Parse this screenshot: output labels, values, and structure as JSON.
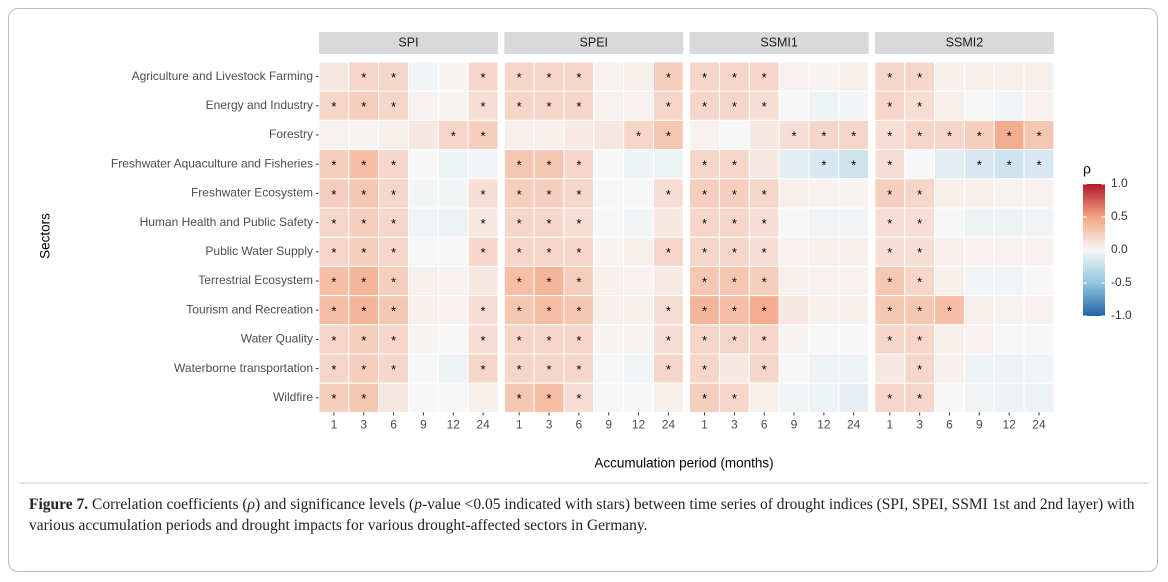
{
  "chart_data": {
    "type": "heatmap",
    "y_label": "Sectors",
    "x_label": "Accumulation period (months)",
    "categories": [
      1,
      3,
      6,
      9,
      12,
      24
    ],
    "sectors": [
      "Agriculture and Livestock Farming",
      "Energy and Industry",
      "Forestry",
      "Freshwater Aquaculture and Fisheries",
      "Freshwater Ecosystem",
      "Human Health and Public Safety",
      "Public Water Supply",
      "Terrestrial Ecosystem",
      "Tourism and Recreation",
      "Water Quality",
      "Waterborne transportation",
      "Wildfire"
    ],
    "star_label": "*",
    "panels": [
      {
        "name": "SPI",
        "values": [
          [
            0.1,
            0.2,
            0.2,
            -0.03,
            0.02,
            0.2
          ],
          [
            0.2,
            0.25,
            0.2,
            0.03,
            0.02,
            0.15
          ],
          [
            0.03,
            0.02,
            0.05,
            0.1,
            0.2,
            0.25
          ],
          [
            0.25,
            0.35,
            0.2,
            0.0,
            -0.05,
            -0.03
          ],
          [
            0.25,
            0.3,
            0.2,
            -0.02,
            -0.02,
            0.15
          ],
          [
            0.2,
            0.25,
            0.2,
            -0.03,
            -0.05,
            0.1
          ],
          [
            0.2,
            0.25,
            0.2,
            0.0,
            0.0,
            0.2
          ],
          [
            0.35,
            0.4,
            0.25,
            0.05,
            0.03,
            0.1
          ],
          [
            0.35,
            0.4,
            0.3,
            0.05,
            0.03,
            0.15
          ],
          [
            0.2,
            0.25,
            0.2,
            0.02,
            0.0,
            0.15
          ],
          [
            0.2,
            0.25,
            0.2,
            0.0,
            -0.05,
            0.2
          ],
          [
            0.25,
            0.3,
            0.1,
            0.0,
            0.0,
            0.05
          ]
        ],
        "significant": [
          [
            0,
            1,
            1,
            0,
            0,
            1
          ],
          [
            1,
            1,
            1,
            0,
            0,
            1
          ],
          [
            0,
            0,
            0,
            0,
            1,
            1
          ],
          [
            1,
            1,
            1,
            0,
            0,
            0
          ],
          [
            1,
            1,
            1,
            0,
            0,
            1
          ],
          [
            1,
            1,
            1,
            0,
            0,
            1
          ],
          [
            1,
            1,
            1,
            0,
            0,
            1
          ],
          [
            1,
            1,
            1,
            0,
            0,
            0
          ],
          [
            1,
            1,
            1,
            0,
            0,
            1
          ],
          [
            1,
            1,
            1,
            0,
            0,
            1
          ],
          [
            1,
            1,
            1,
            0,
            0,
            1
          ],
          [
            1,
            1,
            0,
            0,
            0,
            0
          ]
        ]
      },
      {
        "name": "SPEI",
        "values": [
          [
            0.2,
            0.2,
            0.2,
            0.03,
            0.05,
            0.25
          ],
          [
            0.2,
            0.2,
            0.2,
            0.03,
            0.03,
            0.2
          ],
          [
            0.05,
            0.05,
            0.08,
            0.1,
            0.2,
            0.3
          ],
          [
            0.3,
            0.3,
            0.2,
            0.0,
            -0.05,
            -0.05
          ],
          [
            0.25,
            0.25,
            0.2,
            0.0,
            0.0,
            0.15
          ],
          [
            0.2,
            0.2,
            0.15,
            0.0,
            -0.03,
            0.1
          ],
          [
            0.2,
            0.2,
            0.2,
            0.02,
            0.05,
            0.2
          ],
          [
            0.35,
            0.4,
            0.25,
            0.05,
            0.03,
            0.08
          ],
          [
            0.3,
            0.35,
            0.3,
            0.05,
            0.05,
            0.15
          ],
          [
            0.2,
            0.2,
            0.2,
            0.02,
            0.02,
            0.15
          ],
          [
            0.2,
            0.2,
            0.2,
            0.0,
            -0.03,
            0.2
          ],
          [
            0.3,
            0.35,
            0.15,
            0.0,
            0.0,
            0.05
          ]
        ],
        "significant": [
          [
            1,
            1,
            1,
            0,
            0,
            1
          ],
          [
            1,
            1,
            1,
            0,
            0,
            1
          ],
          [
            0,
            0,
            0,
            0,
            1,
            1
          ],
          [
            1,
            1,
            1,
            0,
            0,
            0
          ],
          [
            1,
            1,
            1,
            0,
            0,
            1
          ],
          [
            1,
            1,
            1,
            0,
            0,
            0
          ],
          [
            1,
            1,
            1,
            0,
            0,
            1
          ],
          [
            1,
            1,
            1,
            0,
            0,
            0
          ],
          [
            1,
            1,
            1,
            0,
            0,
            1
          ],
          [
            1,
            1,
            1,
            0,
            0,
            1
          ],
          [
            1,
            1,
            1,
            0,
            0,
            1
          ],
          [
            1,
            1,
            1,
            0,
            0,
            0
          ]
        ]
      },
      {
        "name": "SSMI1",
        "values": [
          [
            0.2,
            0.2,
            0.2,
            0.03,
            0.02,
            0.05
          ],
          [
            0.2,
            0.2,
            0.15,
            0.0,
            -0.05,
            -0.02
          ],
          [
            0.03,
            0.0,
            0.1,
            0.15,
            0.2,
            0.2
          ],
          [
            0.2,
            0.2,
            0.1,
            -0.1,
            -0.15,
            -0.2
          ],
          [
            0.25,
            0.25,
            0.2,
            0.05,
            0.03,
            0.02
          ],
          [
            0.2,
            0.2,
            0.15,
            0.0,
            -0.03,
            -0.03
          ],
          [
            0.2,
            0.2,
            0.15,
            0.03,
            0.05,
            0.05
          ],
          [
            0.3,
            0.3,
            0.25,
            0.05,
            0.03,
            0.03
          ],
          [
            0.4,
            0.35,
            0.45,
            0.1,
            0.05,
            0.05
          ],
          [
            0.2,
            0.2,
            0.2,
            0.02,
            0.0,
            0.0
          ],
          [
            0.2,
            0.1,
            0.2,
            0.0,
            -0.05,
            -0.05
          ],
          [
            0.25,
            0.2,
            0.05,
            -0.03,
            -0.05,
            -0.08
          ]
        ],
        "significant": [
          [
            1,
            1,
            1,
            0,
            0,
            0
          ],
          [
            1,
            1,
            1,
            0,
            0,
            0
          ],
          [
            0,
            0,
            0,
            1,
            1,
            1
          ],
          [
            1,
            1,
            0,
            0,
            1,
            1
          ],
          [
            1,
            1,
            1,
            0,
            0,
            0
          ],
          [
            1,
            1,
            1,
            0,
            0,
            0
          ],
          [
            1,
            1,
            1,
            0,
            0,
            0
          ],
          [
            1,
            1,
            1,
            0,
            0,
            0
          ],
          [
            1,
            1,
            1,
            0,
            0,
            0
          ],
          [
            1,
            1,
            1,
            0,
            0,
            0
          ],
          [
            1,
            0,
            1,
            0,
            0,
            0
          ],
          [
            1,
            1,
            0,
            0,
            0,
            0
          ]
        ]
      },
      {
        "name": "SSMI2",
        "values": [
          [
            0.2,
            0.2,
            0.05,
            0.05,
            0.05,
            0.05
          ],
          [
            0.2,
            0.15,
            0.05,
            0.0,
            -0.03,
            0.03
          ],
          [
            0.15,
            0.2,
            0.2,
            0.25,
            0.45,
            0.3
          ],
          [
            0.15,
            0.0,
            -0.1,
            -0.15,
            -0.2,
            -0.15
          ],
          [
            0.25,
            0.2,
            0.05,
            0.05,
            0.03,
            0.03
          ],
          [
            0.15,
            0.15,
            0.0,
            -0.05,
            -0.05,
            -0.03
          ],
          [
            0.15,
            0.15,
            0.05,
            0.03,
            0.03,
            0.03
          ],
          [
            0.3,
            0.2,
            0.05,
            -0.03,
            -0.03,
            0.0
          ],
          [
            0.3,
            0.3,
            0.35,
            0.05,
            0.03,
            0.03
          ],
          [
            0.2,
            0.2,
            0.05,
            0.03,
            0.0,
            0.0
          ],
          [
            0.1,
            0.2,
            0.05,
            -0.05,
            -0.05,
            -0.03
          ],
          [
            0.2,
            0.2,
            0.0,
            -0.03,
            -0.05,
            -0.05
          ]
        ],
        "significant": [
          [
            1,
            1,
            0,
            0,
            0,
            0
          ],
          [
            1,
            1,
            0,
            0,
            0,
            0
          ],
          [
            1,
            1,
            1,
            1,
            1,
            1
          ],
          [
            1,
            0,
            0,
            1,
            1,
            1
          ],
          [
            1,
            1,
            0,
            0,
            0,
            0
          ],
          [
            1,
            1,
            0,
            0,
            0,
            0
          ],
          [
            1,
            1,
            0,
            0,
            0,
            0
          ],
          [
            1,
            1,
            0,
            0,
            0,
            0
          ],
          [
            1,
            1,
            1,
            0,
            0,
            0
          ],
          [
            1,
            1,
            0,
            0,
            0,
            0
          ],
          [
            0,
            1,
            0,
            0,
            0,
            0
          ],
          [
            1,
            1,
            0,
            0,
            0,
            0
          ]
        ]
      }
    ],
    "legend_title": "ρ",
    "clim": [
      -1,
      1
    ],
    "cticks": [
      {
        "value": 1,
        "label": "1.0"
      },
      {
        "value": 0.5,
        "label": "0.5"
      },
      {
        "value": 0,
        "label": "0.0"
      },
      {
        "value": -0.5,
        "label": "-0.5"
      },
      {
        "value": -1,
        "label": "-1.0"
      }
    ],
    "colorscale": [
      "#2166ac",
      "#92c5de",
      "#f7f7f7",
      "#f4a582",
      "#b2182b"
    ]
  },
  "caption": {
    "label": "Figure 7.",
    "parts": [
      " Correlation coefficients (",
      "ρ",
      ") and significance levels (",
      "p",
      "-value <0.05 indicated with stars) between time series of drought indices (SPI, SPEI, SSMI 1st and 2nd layer) with various accumulation periods and drought impacts for various drought-affected sectors in Germany."
    ]
  }
}
